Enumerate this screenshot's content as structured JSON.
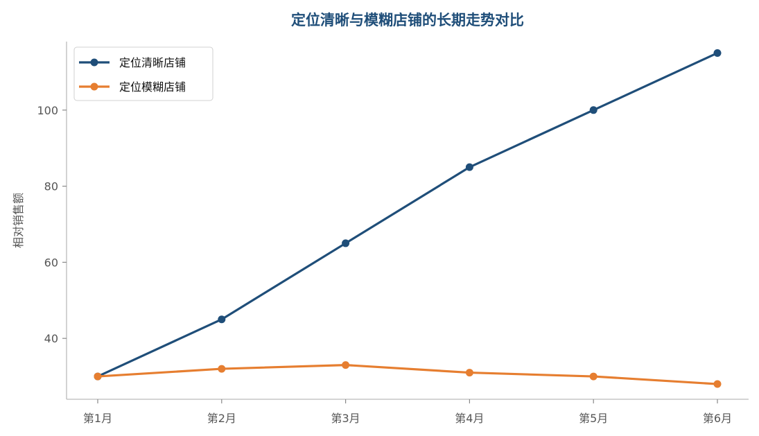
{
  "chart_data": {
    "type": "line",
    "title": "定位清晰与模糊店铺的长期走势对比",
    "xlabel": "",
    "ylabel": "相对销售额",
    "categories": [
      "第1月",
      "第2月",
      "第3月",
      "第4月",
      "第5月",
      "第6月"
    ],
    "yticks": [
      40,
      60,
      80,
      100
    ],
    "ylim": [
      24,
      118
    ],
    "grid": false,
    "legend_position": "top-left",
    "series": [
      {
        "name": "定位清晰店铺",
        "color": "#1f4e79",
        "values": [
          30,
          45,
          65,
          85,
          100,
          115
        ]
      },
      {
        "name": "定位模糊店铺",
        "color": "#e67e30",
        "values": [
          30,
          32,
          33,
          31,
          30,
          28
        ]
      }
    ]
  }
}
